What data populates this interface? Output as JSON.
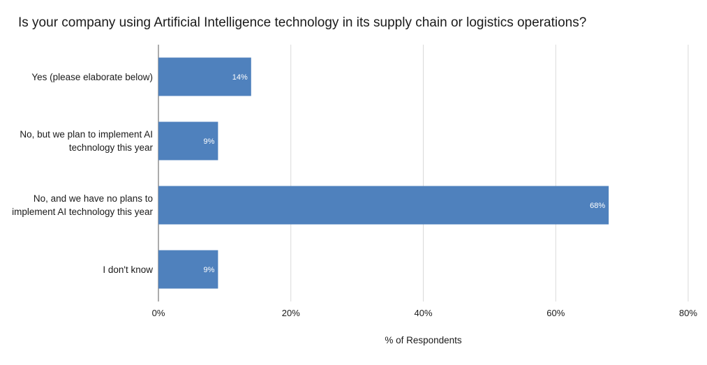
{
  "chart_data": {
    "type": "bar",
    "orientation": "horizontal",
    "title": "Is your company using Artificial Intelligence technology in its supply chain or logistics operations?",
    "xlabel": "% of Respondents",
    "ylabel": "",
    "categories": [
      "Yes (please elaborate below)",
      "No, but we plan to implement AI technology this year",
      "No, and we have no plans to implement AI technology this year",
      "I don't know"
    ],
    "values": [
      14,
      9,
      68,
      9
    ],
    "data_labels": [
      "14%",
      "9%",
      "68%",
      "9%"
    ],
    "xlim": [
      0,
      80
    ],
    "ticks": [
      0,
      20,
      40,
      60,
      80
    ],
    "tick_labels": [
      "0%",
      "20%",
      "40%",
      "60%",
      "80%"
    ],
    "grid": true,
    "legend": "none",
    "colors": {
      "bar": "#4f81bd",
      "grid": "#d9d9d9",
      "axis": "#595959"
    }
  }
}
